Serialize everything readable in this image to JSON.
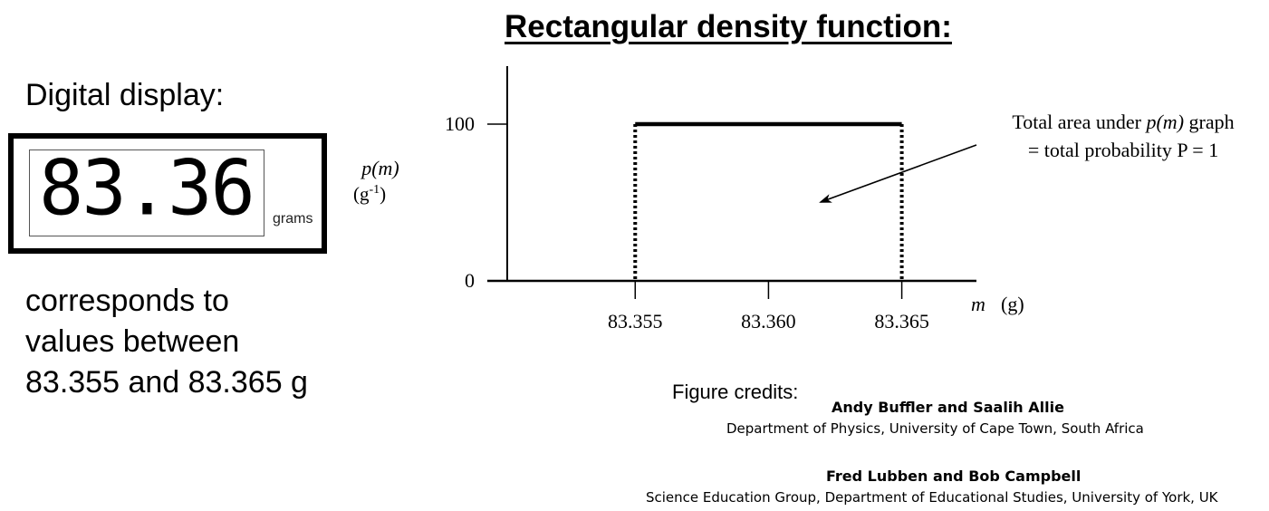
{
  "left_panel": {
    "display_label": "Digital display:",
    "reading": "83.36",
    "unit": "grams",
    "description_lines": [
      "corresponds to",
      "values between",
      "83.355 and 83.365 g"
    ]
  },
  "chart_data": {
    "type": "line",
    "title": "Rectangular density function:",
    "ylabel_main": "p(m)",
    "ylabel_unit": "(g",
    "ylabel_unit_exp": "-1",
    "ylabel_unit_close": ")",
    "xlabel_var": "m",
    "xlabel_unit": "(g)",
    "x_ticks": [
      83.355,
      83.36,
      83.365
    ],
    "x_tick_labels": [
      "83.355",
      "83.360",
      "83.365"
    ],
    "y_ticks": [
      0,
      100
    ],
    "y_tick_labels": [
      "0",
      "100"
    ],
    "xlim": [
      83.3502,
      83.3678
    ],
    "ylim": [
      0,
      137
    ],
    "series": [
      {
        "x": [
          83.355,
          83.365
        ],
        "y": [
          100,
          100
        ]
      }
    ],
    "uniform_bounds": [
      83.355,
      83.365
    ],
    "annotation": {
      "line1_pre": "Total area under ",
      "line1_var": "p(m)",
      "line1_post": " graph",
      "line2": "= total probability P = 1"
    },
    "grid": false
  },
  "credits": {
    "label": "Figure credits:",
    "entries": [
      {
        "name": "Andy Buffler and Saalih Allie",
        "affiliation": "Department of Physics, University of Cape Town, South Africa"
      },
      {
        "name": "Fred Lubben and Bob Campbell",
        "affiliation": "Science Education Group, Department of Educational Studies, University of York, UK"
      }
    ]
  },
  "colors": {
    "ink": "#000000",
    "background": "#ffffff"
  }
}
